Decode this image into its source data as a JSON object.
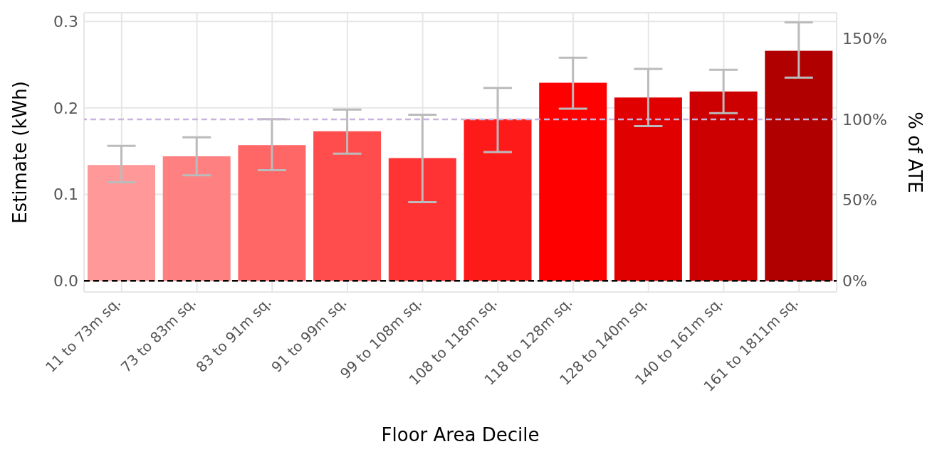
{
  "chart_data": {
    "type": "bar",
    "xlabel": "Floor Area Decile",
    "ylabel": "Estimate (kWh)",
    "y2label": "% of ATE",
    "categories": [
      "11 to 73m sq.",
      "73 to 83m sq.",
      "83 to 91m sq.",
      "91 to 99m sq.",
      "99 to 108m sq.",
      "108 to 118m sq.",
      "118 to 128m sq.",
      "128 to 140m sq.",
      "140 to 161m sq.",
      "161 to 1811m sq."
    ],
    "values": [
      0.134,
      0.144,
      0.157,
      0.173,
      0.142,
      0.187,
      0.229,
      0.212,
      0.219,
      0.266
    ],
    "errors": [
      [
        0.114,
        0.156
      ],
      [
        0.122,
        0.166
      ],
      [
        0.128,
        0.187
      ],
      [
        0.147,
        0.198
      ],
      [
        0.091,
        0.192
      ],
      [
        0.149,
        0.223
      ],
      [
        0.199,
        0.258
      ],
      [
        0.179,
        0.245
      ],
      [
        0.194,
        0.244
      ],
      [
        0.235,
        0.299
      ]
    ],
    "colors": [
      "#ff9999",
      "#ff8080",
      "#ff6666",
      "#ff4d4d",
      "#ff3333",
      "#ff1a1a",
      "#ff0000",
      "#e00000",
      "#cc0000",
      "#b00000"
    ],
    "ylim": [
      -0.013,
      0.31
    ],
    "yticks": [
      {
        "value": 0,
        "label": "0.0"
      },
      {
        "value": 0.1,
        "label": "0.1"
      },
      {
        "value": 0.2,
        "label": "0.2"
      },
      {
        "value": 0.3,
        "label": "0.3"
      }
    ],
    "y2lim": [
      -7,
      166
    ],
    "y2ticks": [
      {
        "value": 0,
        "label": "0%"
      },
      {
        "value": 50,
        "label": "50%"
      },
      {
        "value": 100,
        "label": "100%"
      },
      {
        "value": 150,
        "label": "150%"
      }
    ],
    "ref_lines": [
      {
        "axis": "y",
        "value": 0,
        "label": null,
        "color": "#000000",
        "line_style": "dashed"
      },
      {
        "axis": "y2",
        "value": 100,
        "label": null,
        "color": "#c8b4dc",
        "line_style": "dashed"
      }
    ],
    "grid": true,
    "legend": false
  }
}
